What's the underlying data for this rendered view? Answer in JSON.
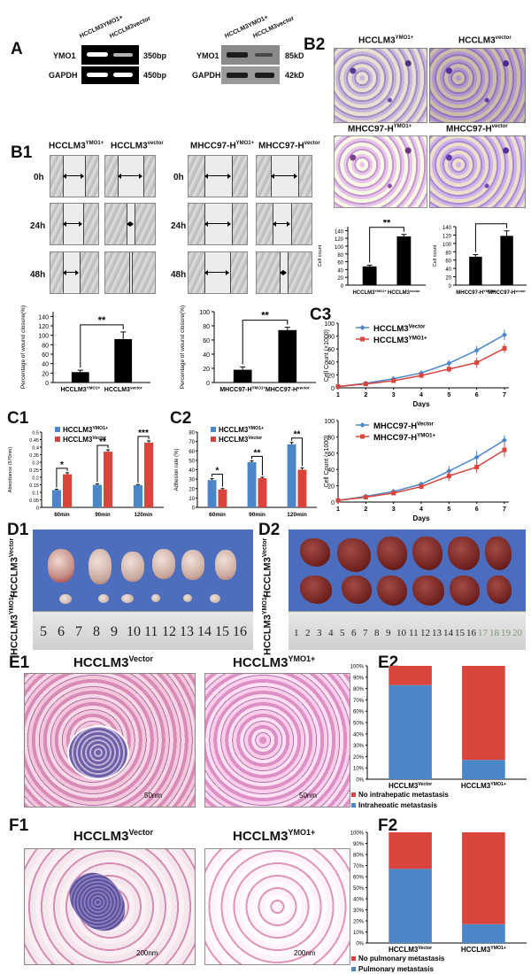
{
  "panels": {
    "A": "A",
    "B1": "B1",
    "B2": "B2",
    "C1": "C1",
    "C2": "C2",
    "C3": "C3",
    "D1": "D1",
    "D2": "D2",
    "E1": "E1",
    "E2": "E2",
    "F1": "F1",
    "F2": "F2"
  },
  "panel_A": {
    "rt_pcr": {
      "col_labels": [
        "HCCLM3YMO1+",
        "HCCLM3vector"
      ],
      "rows": [
        {
          "gene": "YMO1",
          "size": "350bp"
        },
        {
          "gene": "GAPDH",
          "size": "450bp"
        }
      ]
    },
    "western": {
      "col_labels": [
        "HCCLM3YMO1+",
        "HCCLM3vector"
      ],
      "rows": [
        {
          "gene": "YMO1",
          "size": "85kD"
        },
        {
          "gene": "GAPDH",
          "size": "42kD"
        }
      ]
    }
  },
  "panel_B1": {
    "left_cols": [
      "HCCLM3",
      "HCCLM3"
    ],
    "left_sups": [
      "YMO1+",
      "vector"
    ],
    "right_cols": [
      "MHCC97-H",
      "MHCC97-H"
    ],
    "right_sups": [
      "YMO1+",
      "vector"
    ],
    "times": [
      "0h",
      "24h",
      "48h"
    ]
  },
  "panel_B2": {
    "titles": [
      "HCCLM3",
      "HCCLM3",
      "MHCC97-H",
      "MHCC97-H"
    ],
    "sups": [
      "YMO1+",
      "vector",
      "YMO1+",
      "vector"
    ]
  },
  "panel_E1": {
    "titles": [
      "HCCLM3",
      "HCCLM3"
    ],
    "sups": [
      "Vector",
      "YMO1+"
    ],
    "scale": [
      "50nm",
      "50nm"
    ]
  },
  "panel_F1": {
    "titles": [
      "HCCLM3",
      "HCCLM3"
    ],
    "sups": [
      "Vector",
      "YMO1+"
    ],
    "scale": [
      "200nm",
      "200nm"
    ]
  },
  "panel_D1": {
    "row_labels": [
      "HCCLM3",
      "HCCLM3"
    ],
    "row_sups": [
      "Vector",
      "YMO1+"
    ],
    "ruler": [
      "5",
      "6",
      "7",
      "8",
      "9",
      "10",
      "11",
      "12",
      "13",
      "14",
      "15",
      "16"
    ]
  },
  "panel_D2": {
    "row_labels": [
      "HCCLM3",
      "HCCLM3"
    ],
    "row_sups": [
      "Vector",
      "YMO1+"
    ],
    "ruler": [
      "1",
      "2",
      "3",
      "4",
      "5",
      "6",
      "7",
      "8",
      "9",
      "10",
      "11",
      "12",
      "13",
      "14",
      "15",
      "16",
      "17",
      "18",
      "19",
      "20"
    ]
  },
  "chart_data": [
    {
      "id": "B1-left",
      "type": "bar",
      "categories": [
        "HCCLM3YMO1+",
        "HCCLM3vector"
      ],
      "values": [
        22,
        92
      ],
      "errors": [
        4,
        15
      ],
      "ylabel": "Percentage of wound closure(%)",
      "ylim": [
        0,
        150
      ],
      "yticks": [
        0,
        20,
        40,
        60,
        80,
        100,
        120,
        140
      ],
      "significance": "**"
    },
    {
      "id": "B1-right",
      "type": "bar",
      "categories": [
        "MHCC97-HYMO1+",
        "MHCC97-Hvector"
      ],
      "values": [
        18,
        74
      ],
      "errors": [
        4,
        4
      ],
      "ylabel": "Percentage of wound closure(%)",
      "ylim": [
        0,
        100
      ],
      "yticks": [
        0,
        20,
        40,
        60,
        80,
        100
      ],
      "significance": "**"
    },
    {
      "id": "B2-left",
      "type": "bar",
      "categories": [
        "HCCLM3YMO1+",
        "HCCLM3vector"
      ],
      "values": [
        48,
        125
      ],
      "errors": [
        3,
        5
      ],
      "ylabel": "Cell count",
      "ylim": [
        0,
        150
      ],
      "yticks": [
        0,
        20,
        40,
        60,
        80,
        100,
        120,
        140
      ],
      "significance": "**"
    },
    {
      "id": "B2-right",
      "type": "bar",
      "categories": [
        "MHCC97-HYMO1+",
        "MHCC97-Hvector"
      ],
      "values": [
        68,
        118
      ],
      "errors": [
        5,
        12
      ],
      "ylabel": "Cell count",
      "ylim": [
        0,
        140
      ],
      "yticks": [
        0,
        20,
        40,
        60,
        80,
        100,
        120,
        140
      ],
      "significance": "*"
    },
    {
      "id": "C1",
      "type": "bar",
      "categories": [
        "60min",
        "90min",
        "120min"
      ],
      "series": [
        {
          "name": "HCCLM3YMO1+",
          "color": "#4a86c8",
          "values": [
            0.115,
            0.15,
            0.148
          ],
          "errors": [
            0.005,
            0.006,
            0.004
          ]
        },
        {
          "name": "HCCLM3Vector",
          "color": "#d9453d",
          "values": [
            0.22,
            0.37,
            0.43
          ],
          "errors": [
            0.01,
            0.012,
            0.012
          ]
        }
      ],
      "ylabel": "Absorbance (570nm)",
      "ylim": [
        0,
        0.5
      ],
      "yticks": [
        0,
        0.05,
        0.1,
        0.15,
        0.2,
        0.25,
        0.3,
        0.35,
        0.4,
        0.45,
        0.5
      ],
      "significance": [
        "*",
        "**",
        "***"
      ]
    },
    {
      "id": "C2",
      "type": "bar",
      "categories": [
        "60min",
        "90min",
        "120min"
      ],
      "series": [
        {
          "name": "HCCLM3YMO1+",
          "color": "#4a86c8",
          "values": [
            29,
            48,
            67
          ],
          "errors": [
            1.5,
            1.5,
            2
          ]
        },
        {
          "name": "HCCLM3Vector",
          "color": "#d9453d",
          "values": [
            19,
            31,
            40
          ],
          "errors": [
            1,
            1,
            2
          ]
        }
      ],
      "ylabel": "Adhesion rate (%)",
      "ylim": [
        0,
        80
      ],
      "yticks": [
        0,
        10,
        20,
        30,
        40,
        50,
        60,
        70,
        80
      ],
      "significance": [
        "*",
        "**",
        "**"
      ]
    },
    {
      "id": "C3-top",
      "type": "line",
      "x": [
        1,
        2,
        3,
        4,
        5,
        6,
        7
      ],
      "series": [
        {
          "name": "HCCLM3Vector",
          "color": "#4a86c8",
          "values": [
            2,
            7,
            14,
            23,
            38,
            58,
            82
          ],
          "errors": [
            0.5,
            1,
            2,
            3,
            5,
            7,
            8
          ]
        },
        {
          "name": "HCCLM3YMO1+",
          "color": "#d9453d",
          "values": [
            2,
            6,
            11,
            19,
            29,
            39,
            61
          ],
          "errors": [
            0.5,
            1,
            2,
            3,
            5,
            8,
            7
          ]
        }
      ],
      "xlabel": "Days",
      "ylabel": "Cell Count (×1000)",
      "ylim": [
        0,
        100
      ],
      "yticks": [
        0,
        20,
        40,
        60,
        80,
        100
      ]
    },
    {
      "id": "C3-bottom",
      "type": "line",
      "x": [
        1,
        2,
        3,
        4,
        5,
        6,
        7
      ],
      "series": [
        {
          "name": "MHCC97-HVector",
          "color": "#4a86c8",
          "values": [
            2,
            7,
            13,
            22,
            38,
            55,
            76
          ],
          "errors": [
            0.5,
            1,
            2,
            3,
            6,
            8,
            6
          ]
        },
        {
          "name": "MHCC97-HYMO1+",
          "color": "#d9453d",
          "values": [
            2,
            6,
            11,
            19,
            32,
            43,
            64
          ],
          "errors": [
            0.5,
            1,
            2,
            3,
            6,
            7,
            9
          ]
        }
      ],
      "xlabel": "Days",
      "ylabel": "Cell Count (×1000)",
      "ylim": [
        0,
        100
      ],
      "yticks": [
        0,
        20,
        40,
        60,
        80,
        100
      ]
    },
    {
      "id": "E2",
      "type": "bar",
      "stacked": true,
      "categories": [
        "HCCLM3Vector",
        "HCCLM3YMO1+"
      ],
      "series": [
        {
          "name": "Intrahepatic metastasis",
          "color": "#4a86c8",
          "values": [
            83,
            17
          ]
        },
        {
          "name": "No intrahepatic metastasis",
          "color": "#d9453d",
          "values": [
            17,
            83
          ]
        }
      ],
      "ylim": [
        0,
        100
      ],
      "yticks": [
        "0%",
        "10%",
        "20%",
        "30%",
        "40%",
        "50%",
        "60%",
        "70%",
        "80%",
        "90%",
        "100%"
      ]
    },
    {
      "id": "F2",
      "type": "bar",
      "stacked": true,
      "categories": [
        "HCCLM3Vector",
        "HCCLM3YMO1+"
      ],
      "series": [
        {
          "name": "Pulmonary metastasis",
          "color": "#4a86c8",
          "values": [
            67,
            17
          ]
        },
        {
          "name": "No pulmonary metastasis",
          "color": "#d9453d",
          "values": [
            33,
            83
          ]
        }
      ],
      "ylim": [
        0,
        100
      ],
      "yticks": [
        "0%",
        "10%",
        "20%",
        "30%",
        "40%",
        "50%",
        "60%",
        "70%",
        "80%",
        "90%",
        "100%"
      ]
    }
  ]
}
